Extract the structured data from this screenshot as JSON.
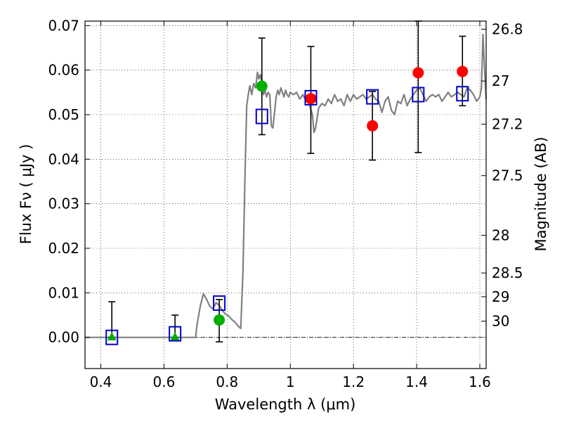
{
  "chart_data": {
    "type": "scatter",
    "xlabel": "Wavelength  λ (μm)",
    "ylabel": "Flux  Fν  ( μJy )",
    "y2label": "Magnitude (AB)",
    "xlim": [
      0.35,
      1.62
    ],
    "ylim": [
      -0.007,
      0.071
    ],
    "grid": true,
    "x_ticks": [
      {
        "v": 0.4,
        "label": "0.4"
      },
      {
        "v": 0.6,
        "label": "0.6"
      },
      {
        "v": 0.8,
        "label": "0.8"
      },
      {
        "v": 1.0,
        "label": "1"
      },
      {
        "v": 1.2,
        "label": "1.2"
      },
      {
        "v": 1.4,
        "label": "1.4"
      },
      {
        "v": 1.6,
        "label": "1.6"
      }
    ],
    "y_ticks": [
      {
        "v": 0.0,
        "label": "0.00"
      },
      {
        "v": 0.01,
        "label": "0.01"
      },
      {
        "v": 0.02,
        "label": "0.02"
      },
      {
        "v": 0.03,
        "label": "0.03"
      },
      {
        "v": 0.04,
        "label": "0.04"
      },
      {
        "v": 0.05,
        "label": "0.05"
      },
      {
        "v": 0.06,
        "label": "0.06"
      },
      {
        "v": 0.07,
        "label": "0.07"
      }
    ],
    "magnitude_ticks": [
      {
        "mag": 26.8,
        "label": "26.8"
      },
      {
        "mag": 27.0,
        "label": "27"
      },
      {
        "mag": 27.2,
        "label": "27.2"
      },
      {
        "mag": 27.5,
        "label": "27.5"
      },
      {
        "mag": 28.0,
        "label": "28"
      },
      {
        "mag": 28.5,
        "label": "28.5"
      },
      {
        "mag": 29.0,
        "label": "29"
      },
      {
        "mag": 30.0,
        "label": "30"
      }
    ],
    "observed_points": [
      {
        "x": 0.435,
        "y": 0.0,
        "err_low": 0.0,
        "err_high": 0.008,
        "marker": "triangle",
        "color": "#00b000"
      },
      {
        "x": 0.635,
        "y": 0.0,
        "err_low": 0.0,
        "err_high": 0.005,
        "marker": "triangle",
        "color": "#00b000"
      },
      {
        "x": 0.775,
        "y": 0.0039,
        "err_low": -0.001,
        "err_high": 0.0085,
        "marker": "circle",
        "color": "#00b000"
      },
      {
        "x": 0.91,
        "y": 0.0564,
        "err_low": 0.0455,
        "err_high": 0.0672,
        "marker": "circle",
        "color": "#00b000"
      },
      {
        "x": 1.065,
        "y": 0.0536,
        "err_low": 0.0413,
        "err_high": 0.0653,
        "marker": "circle",
        "color": "#ff0000"
      },
      {
        "x": 1.26,
        "y": 0.0475,
        "err_low": 0.0398,
        "err_high": 0.0552,
        "marker": "circle",
        "color": "#ff0000"
      },
      {
        "x": 1.405,
        "y": 0.0594,
        "err_low": 0.0415,
        "err_high": 0.071,
        "marker": "circle",
        "color": "#ff0000"
      },
      {
        "x": 1.545,
        "y": 0.0597,
        "err_low": 0.052,
        "err_high": 0.0676,
        "marker": "circle",
        "color": "#ff0000"
      }
    ],
    "model_points": [
      {
        "x": 0.435,
        "y": 0.0
      },
      {
        "x": 0.635,
        "y": 0.0008
      },
      {
        "x": 0.775,
        "y": 0.0077
      },
      {
        "x": 0.91,
        "y": 0.0496
      },
      {
        "x": 1.065,
        "y": 0.0538
      },
      {
        "x": 1.26,
        "y": 0.054
      },
      {
        "x": 1.405,
        "y": 0.0545
      },
      {
        "x": 1.545,
        "y": 0.0547
      }
    ],
    "spectrum": {
      "x": [
        0.35,
        0.7,
        0.705,
        0.715,
        0.725,
        0.735,
        0.745,
        0.755,
        0.765,
        0.775,
        0.785,
        0.795,
        0.805,
        0.815,
        0.825,
        0.835,
        0.843,
        0.85,
        0.857,
        0.862,
        0.867,
        0.872,
        0.878,
        0.884,
        0.89,
        0.896,
        0.9,
        0.905,
        0.91,
        0.915,
        0.92,
        0.925,
        0.93,
        0.935,
        0.94,
        0.945,
        0.95,
        0.955,
        0.96,
        0.965,
        0.97,
        0.975,
        0.98,
        0.985,
        0.99,
        0.995,
        1.0,
        1.01,
        1.02,
        1.03,
        1.04,
        1.05,
        1.06,
        1.07,
        1.075,
        1.08,
        1.09,
        1.1,
        1.11,
        1.12,
        1.13,
        1.14,
        1.15,
        1.16,
        1.17,
        1.18,
        1.19,
        1.2,
        1.21,
        1.22,
        1.23,
        1.24,
        1.25,
        1.26,
        1.27,
        1.28,
        1.29,
        1.3,
        1.31,
        1.32,
        1.33,
        1.34,
        1.35,
        1.36,
        1.37,
        1.38,
        1.39,
        1.4,
        1.41,
        1.42,
        1.43,
        1.44,
        1.45,
        1.46,
        1.47,
        1.48,
        1.49,
        1.5,
        1.51,
        1.52,
        1.53,
        1.54,
        1.55,
        1.56,
        1.57,
        1.58,
        1.59,
        1.6,
        1.605,
        1.61,
        1.615,
        1.62
      ],
      "y": [
        0.0,
        0.0,
        0.003,
        0.007,
        0.0098,
        0.0085,
        0.007,
        0.0064,
        0.0078,
        0.0072,
        0.006,
        0.0052,
        0.0048,
        0.004,
        0.0034,
        0.0025,
        0.002,
        0.0145,
        0.038,
        0.052,
        0.0545,
        0.0565,
        0.0545,
        0.057,
        0.056,
        0.0595,
        0.058,
        0.059,
        0.057,
        0.0545,
        0.0555,
        0.054,
        0.055,
        0.0545,
        0.0475,
        0.047,
        0.0505,
        0.054,
        0.0555,
        0.0545,
        0.056,
        0.055,
        0.054,
        0.0555,
        0.0545,
        0.054,
        0.055,
        0.0545,
        0.055,
        0.0535,
        0.0545,
        0.053,
        0.0525,
        0.05,
        0.046,
        0.047,
        0.0515,
        0.0525,
        0.052,
        0.0535,
        0.0525,
        0.0545,
        0.053,
        0.0535,
        0.052,
        0.0545,
        0.053,
        0.0545,
        0.0535,
        0.054,
        0.0545,
        0.0535,
        0.054,
        0.0545,
        0.0535,
        0.053,
        0.0505,
        0.053,
        0.054,
        0.051,
        0.05,
        0.053,
        0.0525,
        0.0545,
        0.052,
        0.0535,
        0.0545,
        0.0555,
        0.056,
        0.0545,
        0.053,
        0.054,
        0.0545,
        0.054,
        0.0545,
        0.053,
        0.054,
        0.055,
        0.054,
        0.0545,
        0.055,
        0.0545,
        0.054,
        0.056,
        0.0555,
        0.0545,
        0.053,
        0.054,
        0.056,
        0.068,
        0.06,
        0.0535
      ],
      "color": "#808080"
    },
    "colors": {
      "spectrum": "#808080",
      "model_marker": "#0000cc",
      "errorbar": "#000000",
      "zero_line": "#000000",
      "grid": "#000000"
    }
  }
}
